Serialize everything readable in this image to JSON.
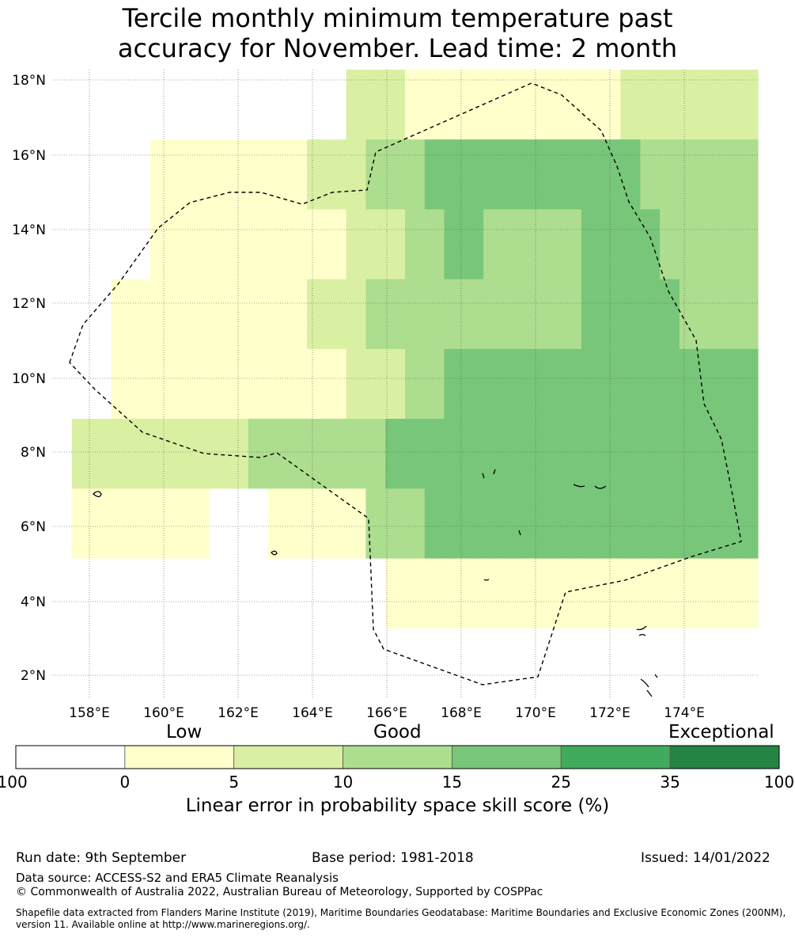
{
  "title_line1": "Tercile monthly minimum temperature past",
  "title_line2": "accuracy for November. Lead time: 2 month",
  "map": {
    "lat_labels": [
      "18°N",
      "16°N",
      "14°N",
      "12°N",
      "10°N",
      "8°N",
      "6°N",
      "4°N",
      "2°N"
    ],
    "lon_labels": [
      "158°E",
      "160°E",
      "162°E",
      "164°E",
      "166°E",
      "168°E",
      "170°E",
      "172°E",
      "174°E"
    ],
    "rows": [
      "000000000000000222111111111112222222",
      "000001111111122233344444444444333333",
      "000001111111111222334433333444433333",
      "000111111111122233333333333444443333",
      "000111111111111222334444444444444444",
      "022222222233333334444444444444444444",
      "011111110001111133344444444444444444",
      "000000000000000001111111111111111111",
      "000000000000000000000000000000000000"
    ]
  },
  "legend": {
    "category_low": "Low",
    "category_good": "Good",
    "category_exceptional": "Exceptional",
    "colors": [
      "#ffffff",
      "#ffffcc",
      "#d9f0a3",
      "#addd8e",
      "#78c679",
      "#41ab5d",
      "#238443"
    ],
    "ticks": [
      "-100",
      "0",
      "5",
      "10",
      "15",
      "25",
      "35",
      "100"
    ],
    "label": "Linear error in probability space skill score (%)"
  },
  "footer": {
    "run_date": "Run date: 9th September",
    "base_period": "Base period: 1981-2018",
    "issued": "Issued: 14/01/2022",
    "data_source": "Data source: ACCESS-S2 and ERA5 Climate Reanalysis",
    "copyright": "© Commonwealth of Australia 2022, Australian Bureau of Meteorology, Supported by COSPPac",
    "shapefile_line1": "Shapefile data extracted from Flanders Marine Institute (2019), Maritime Boundaries Geodatabase: Maritime Boundaries and Exclusive Economic Zones (200NM),",
    "shapefile_line2": "version 11. Available online at http://www.marineregions.org/."
  }
}
